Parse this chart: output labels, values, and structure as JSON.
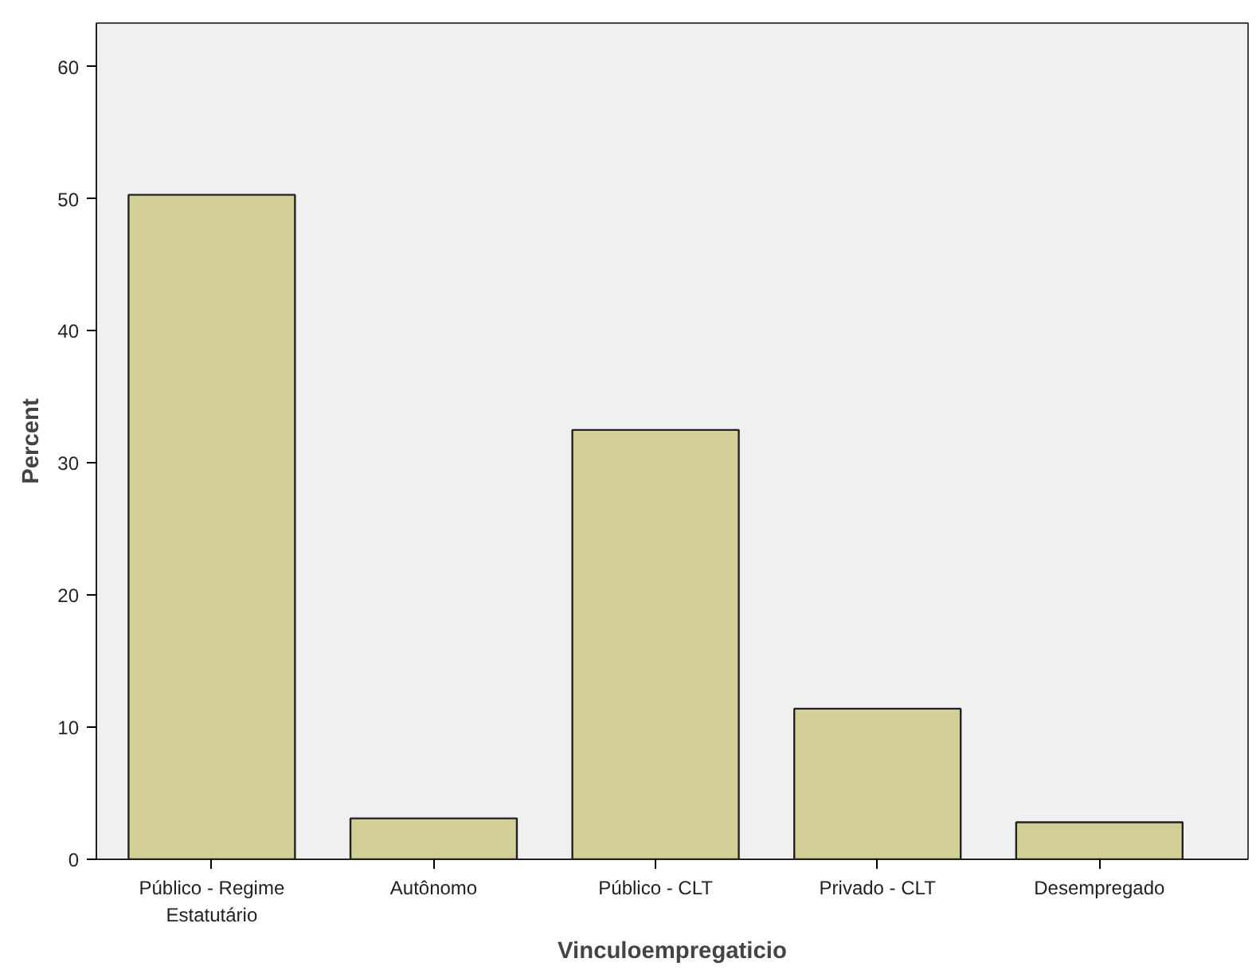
{
  "chart_data": {
    "type": "bar",
    "xlabel": "Vinculoempregaticio",
    "ylabel": "Percent",
    "categories": [
      "Público - Regime Estatutário",
      "Autônomo",
      "Público - CLT",
      "Privado - CLT",
      "Desempregado"
    ],
    "values": [
      50.3,
      3.1,
      32.5,
      11.4,
      2.8
    ],
    "color": "#d3cf97",
    "ylim": [
      0,
      63.3
    ],
    "yticks": [
      0,
      10,
      20,
      30,
      40,
      50,
      60
    ],
    "grid": false
  }
}
